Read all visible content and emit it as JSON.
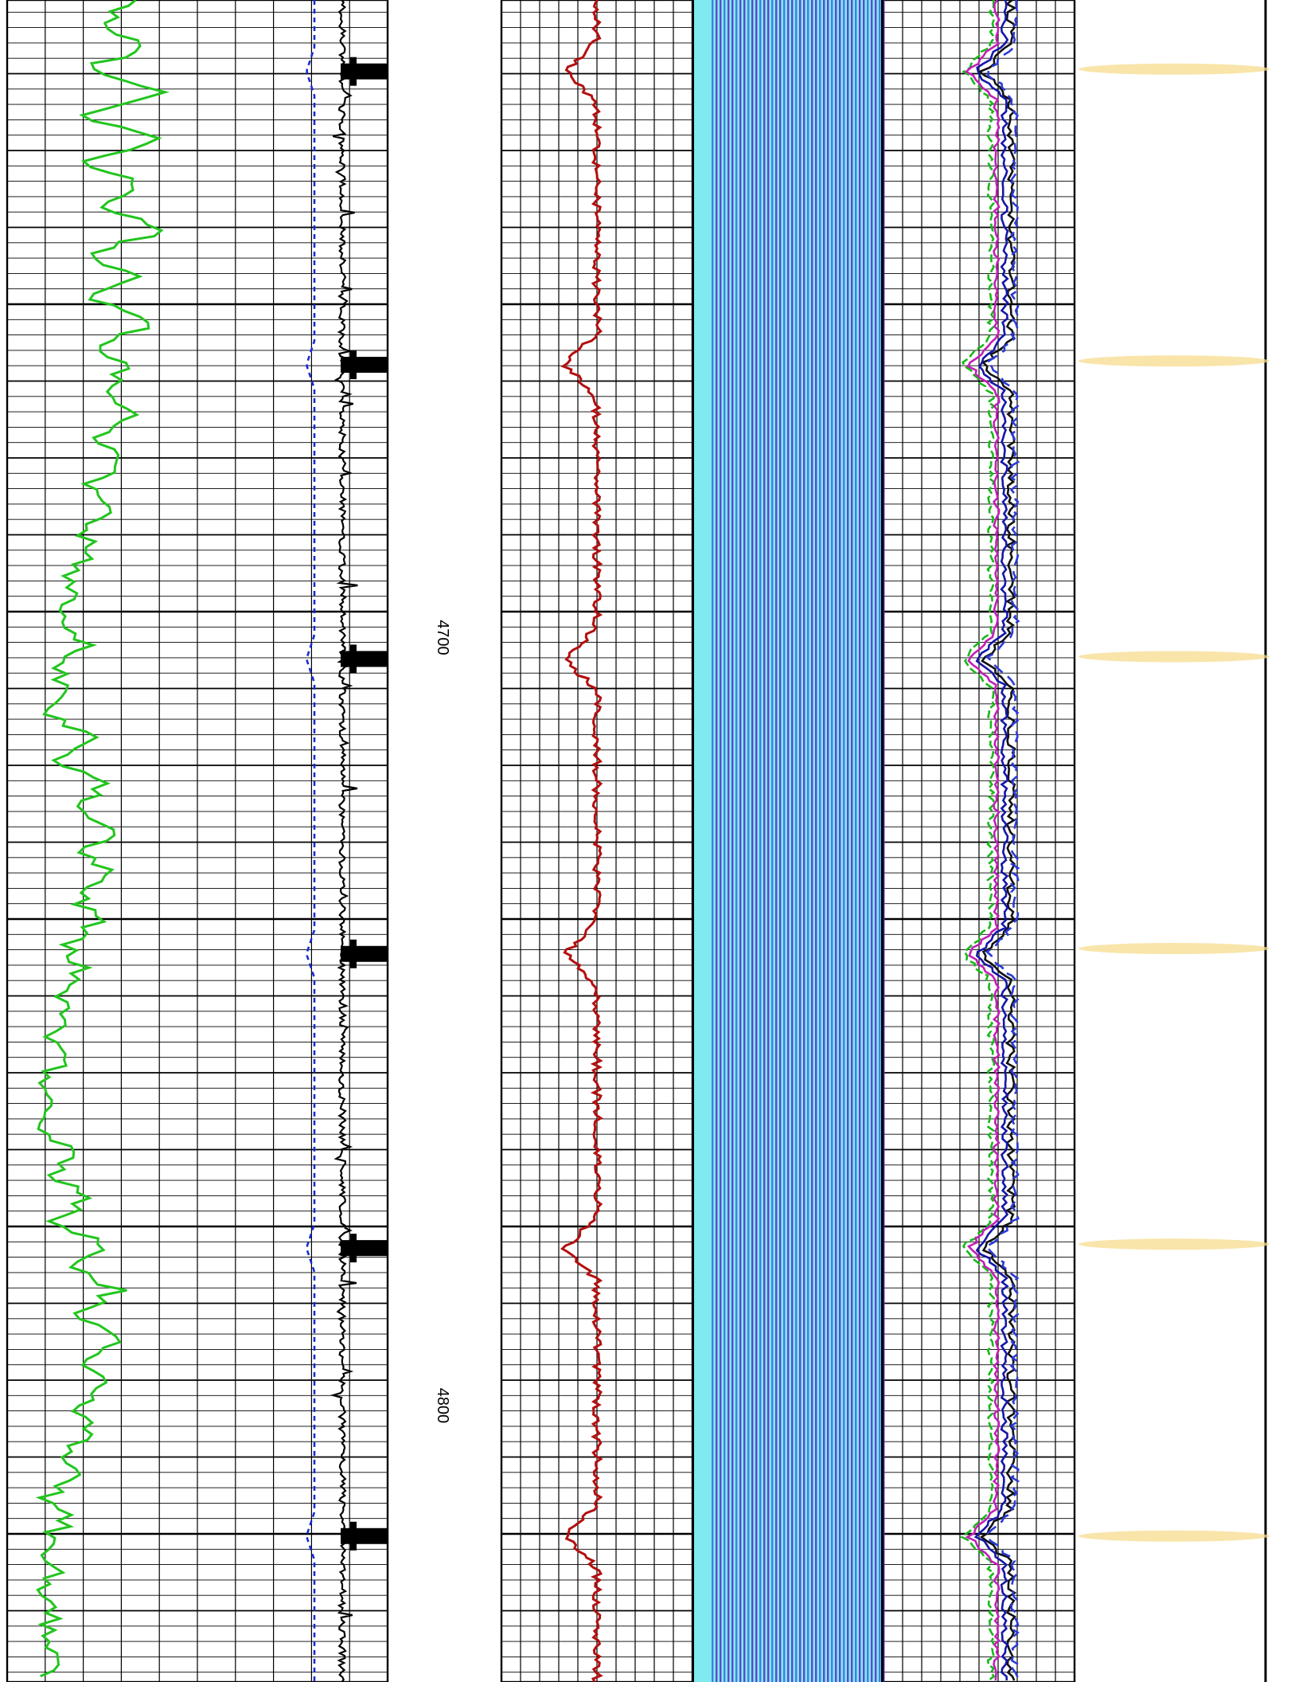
{
  "chart_data": {
    "type": "line",
    "depth_axis": {
      "labels": [
        {
          "value": 4700,
          "text": "4700"
        },
        {
          "value": 4800,
          "text": "4800"
        }
      ],
      "range": [
        4617,
        4836
      ],
      "label_orientation": "rotated-90"
    },
    "colors": {
      "gamma": "#22c51e",
      "caliper": "#1a2bd6",
      "spiky": "#000000",
      "red": "#b30f0f",
      "image_light": "#7feaf0",
      "image_dark": "#5b2bc4",
      "image_mid": "#3b6be0",
      "multi_black": "#111111",
      "multi_green": "#18b818",
      "multi_magenta": "#c21fb8",
      "multi_blue": "#1616a8",
      "multi_dash": "#2a3ad8",
      "shading": "#f7dc8e",
      "grid": "#000000"
    },
    "tracks": [
      {
        "name": "track-1",
        "curves": [
          "gamma",
          "caliper",
          "spiky"
        ],
        "grid": true
      },
      {
        "name": "depth-track",
        "grid": false
      },
      {
        "name": "track-3",
        "curves": [
          "red"
        ],
        "grid": true
      },
      {
        "name": "image-track",
        "grid": false
      },
      {
        "name": "track-5",
        "curves": [
          "multi_black",
          "multi_green",
          "multi_magenta",
          "multi_blue",
          "multi_dash"
        ],
        "grid": true
      },
      {
        "name": "shading-track",
        "grid": false
      }
    ],
    "event_depths": [
      4626.3,
      4664.5,
      4702.8,
      4741.2,
      4779.5,
      4817.0
    ],
    "shading_depths": [
      4626.0,
      4664.0,
      4702.5,
      4740.5,
      4779.0,
      4817.0
    ],
    "series": [
      {
        "key": "gamma",
        "depth": [
          4617,
          4620,
          4623,
          4626,
          4629,
          4632,
          4635,
          4638,
          4641,
          4644,
          4647,
          4650,
          4653,
          4656,
          4659,
          4662,
          4665,
          4668,
          4671,
          4674,
          4677,
          4680,
          4683,
          4686,
          4689,
          4692,
          4695,
          4698,
          4701,
          4704,
          4707,
          4710,
          4713,
          4716,
          4719,
          4722,
          4725,
          4728,
          4731,
          4734,
          4737,
          4740,
          4743,
          4746,
          4749,
          4752,
          4755,
          4758,
          4761,
          4764,
          4767,
          4770,
          4773,
          4776,
          4779,
          4782,
          4785,
          4788,
          4791,
          4794,
          4797,
          4800,
          4803,
          4806,
          4809,
          4812,
          4815,
          4818,
          4821,
          4824,
          4827,
          4830,
          4833,
          4836
        ],
        "values": [
          0.55,
          0.42,
          0.6,
          0.35,
          0.7,
          0.3,
          0.66,
          0.34,
          0.58,
          0.4,
          0.7,
          0.36,
          0.55,
          0.38,
          0.64,
          0.42,
          0.5,
          0.45,
          0.58,
          0.4,
          0.52,
          0.36,
          0.44,
          0.32,
          0.38,
          0.26,
          0.3,
          0.22,
          0.34,
          0.2,
          0.28,
          0.18,
          0.36,
          0.22,
          0.44,
          0.3,
          0.5,
          0.34,
          0.46,
          0.32,
          0.38,
          0.28,
          0.32,
          0.22,
          0.26,
          0.18,
          0.24,
          0.16,
          0.22,
          0.14,
          0.3,
          0.18,
          0.36,
          0.22,
          0.42,
          0.26,
          0.48,
          0.3,
          0.52,
          0.34,
          0.46,
          0.3,
          0.38,
          0.24,
          0.3,
          0.18,
          0.26,
          0.16,
          0.22,
          0.14,
          0.2,
          0.16,
          0.22,
          0.18
        ]
      }
    ]
  }
}
